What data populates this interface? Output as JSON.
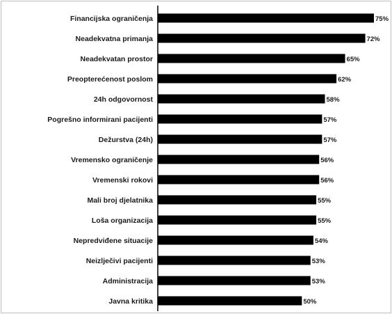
{
  "chart_data": {
    "type": "bar",
    "orientation": "horizontal",
    "categories": [
      "Financijska ograničenja",
      "Neadekvatna primanja",
      "Neadekvatan prostor",
      "Preopterećenost poslom",
      "24h odgovornost",
      "Pogrešno informirani pacijenti",
      "Dežurstva (24h)",
      "Vremensko ograničenje",
      "Vremenski rokovi",
      "Mali broj djelatnika",
      "Loša organizacija",
      "Nepredviđene situacije",
      "Neizlječivi pacijenti",
      "Administracija",
      "Javna kritika"
    ],
    "values": [
      75,
      72,
      65,
      62,
      58,
      57,
      57,
      56,
      56,
      55,
      55,
      54,
      53,
      53,
      50
    ],
    "value_labels": [
      "75%",
      "72%",
      "65%",
      "62%",
      "58%",
      "57%",
      "57%",
      "56%",
      "56%",
      "55%",
      "55%",
      "54%",
      "53%",
      "53%",
      "50%"
    ],
    "title": "",
    "xlabel": "",
    "ylabel": "",
    "xlim": [
      0,
      75
    ],
    "grid": false,
    "legend": "none",
    "bar_color": "#000000",
    "border_color": "#bdbdbd"
  }
}
